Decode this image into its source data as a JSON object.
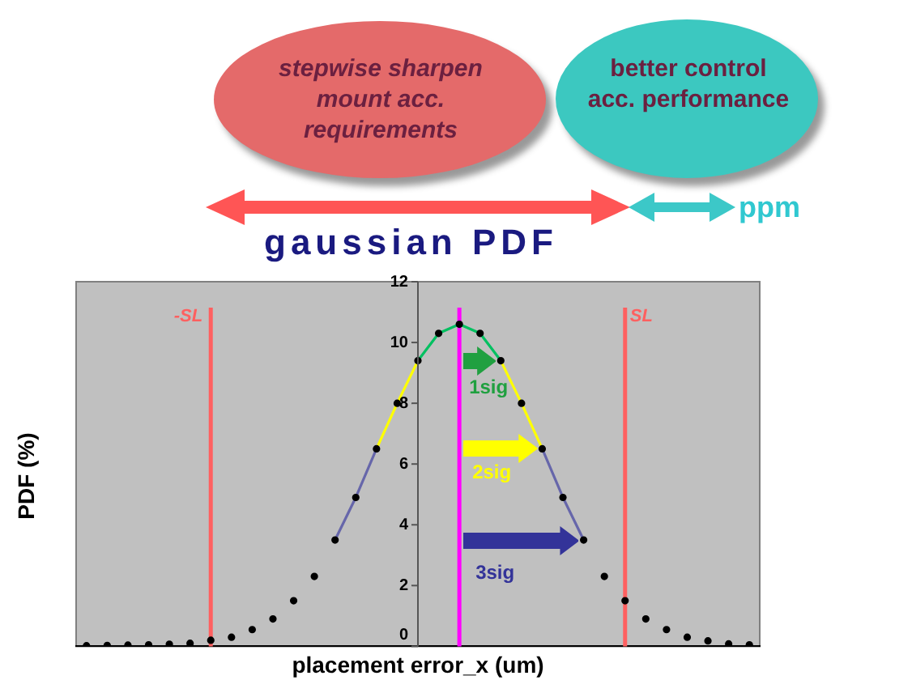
{
  "chart_data": {
    "type": "line",
    "xlabel": "placement error_x (um)",
    "ylabel": "PDF (%)",
    "categories": [
      null,
      null,
      null,
      null,
      null,
      null,
      null,
      null,
      null,
      null,
      null,
      null,
      null,
      null,
      null,
      null,
      null,
      null,
      null,
      null,
      null,
      null,
      null,
      null,
      null,
      null,
      null,
      null,
      null,
      null,
      null,
      null,
      null
    ],
    "series": [
      {
        "type": "scatter",
        "color": "#000000",
        "marker": "circle",
        "values": [
          0.02,
          0.03,
          0.04,
          0.05,
          0.07,
          0.1,
          0.2,
          0.3,
          0.55,
          0.9,
          1.5,
          2.3,
          3.5,
          4.9,
          6.5,
          8.0,
          9.4,
          10.3,
          10.6,
          10.3,
          9.4,
          8.0,
          6.5,
          4.9,
          3.5,
          2.3,
          1.5,
          0.9,
          0.55,
          0.3,
          0.18,
          0.08,
          0.05
        ]
      },
      {
        "color": "#00c060",
        "marker": "none",
        "values": [
          null,
          null,
          null,
          null,
          null,
          null,
          null,
          null,
          null,
          null,
          null,
          null,
          null,
          null,
          null,
          null,
          9.4,
          10.3,
          10.6,
          10.3,
          9.4,
          null,
          null,
          null,
          null,
          null,
          null,
          null,
          null,
          null,
          null,
          null,
          null
        ]
      },
      {
        "color": "#ffff00",
        "marker": "none",
        "values": [
          null,
          null,
          null,
          null,
          null,
          null,
          null,
          null,
          null,
          null,
          null,
          null,
          null,
          null,
          6.5,
          8.0,
          9.4,
          null,
          null,
          null,
          9.4,
          8.0,
          6.5,
          null,
          null,
          null,
          null,
          null,
          null,
          null,
          null,
          null,
          null
        ]
      },
      {
        "color": "#6666aa",
        "marker": "none",
        "values": [
          null,
          null,
          null,
          null,
          null,
          null,
          null,
          null,
          null,
          null,
          null,
          null,
          3.5,
          4.9,
          6.5,
          null,
          null,
          null,
          null,
          null,
          null,
          null,
          6.5,
          4.9,
          3.5,
          null,
          null,
          null,
          null,
          null,
          null,
          null,
          null
        ]
      }
    ],
    "ylim": [
      0,
      12
    ],
    "yticks": [
      0,
      2,
      4,
      6,
      8,
      10,
      12
    ],
    "tick_labels": "y",
    "grid": false,
    "legend": false,
    "annotations": [
      "stepwise sharpen mount acc. requirements",
      "better control acc. performance",
      "gaussian PDF",
      "ppm",
      "-SL",
      "SL",
      "1sig",
      "2sig",
      "3sig"
    ]
  }
}
